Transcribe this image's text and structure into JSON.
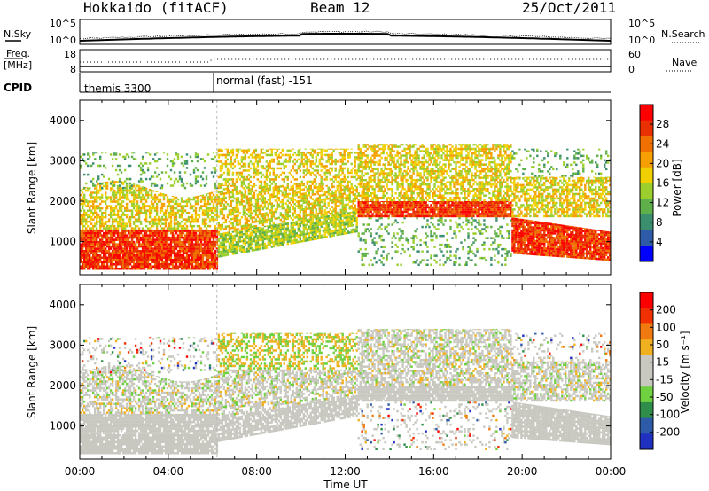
{
  "header": {
    "station": "Hokkaido (fitACF)",
    "beam": "Beam 12",
    "date": "25/Oct/2011"
  },
  "noise_panel": {
    "left_label": "N.Sky",
    "right_label": "N.Search",
    "left_ticks": [
      "10^5",
      "10^0"
    ],
    "right_ticks": [
      "10^5",
      "10^0"
    ]
  },
  "freq_panel": {
    "left_label_line1": "Freq.",
    "left_label_line2": "[MHz]",
    "right_label": "Nave",
    "left_ticks": [
      "18",
      "8"
    ],
    "right_ticks": [
      "60",
      "0"
    ]
  },
  "cpid_panel": {
    "label": "CPID",
    "segments": [
      {
        "label": "themis 3300",
        "start_hour": 0
      },
      {
        "label": "normal (fast) -151",
        "start_hour": 6
      }
    ]
  },
  "colors": {
    "power_scale": [
      "#0000ff",
      "#2e5ba8",
      "#3c8f6e",
      "#5fb04a",
      "#9ccf2e",
      "#f0d000",
      "#f5a000",
      "#f07000",
      "#e83000",
      "#ff0000"
    ],
    "velocity_scale": [
      "#2030c0",
      "#2e5ba8",
      "#2f8f4a",
      "#6fd040",
      "#c8c8c0",
      "#c8c8c0",
      "#f0b020",
      "#f07a10",
      "#f03000",
      "#ff0000"
    ],
    "ground_scatter": "#c8c8c0"
  },
  "chart_data": [
    {
      "type": "heatmap",
      "title": "Power",
      "ylabel": "Slant Range [km]",
      "yticks": [
        "1000",
        "2000",
        "3000",
        "4000"
      ],
      "ylim": [
        180,
        4500
      ],
      "xlim": [
        0,
        24
      ],
      "colorbar": {
        "label": "Power [dB]",
        "ticks": [
          "4",
          "8",
          "12",
          "16",
          "20",
          "24",
          "28"
        ],
        "range": [
          0,
          30
        ]
      }
    },
    {
      "type": "heatmap",
      "title": "Velocity",
      "ylabel": "Slant Range [km]",
      "yticks": [
        "1000",
        "2000",
        "3000",
        "4000"
      ],
      "ylim": [
        180,
        4500
      ],
      "xlim": [
        0,
        24
      ],
      "colorbar": {
        "label": "Velocity [m s⁻¹]",
        "ticks": [
          "200",
          "100",
          "50",
          "15",
          "-15",
          "-50",
          "-100",
          "-200"
        ]
      }
    }
  ],
  "xaxis": {
    "label": "Time UT",
    "ticks": [
      "00:00",
      "04:00",
      "08:00",
      "12:00",
      "16:00",
      "20:00",
      "00:00"
    ],
    "tick_hours": [
      0,
      4,
      8,
      12,
      16,
      20,
      24
    ]
  }
}
